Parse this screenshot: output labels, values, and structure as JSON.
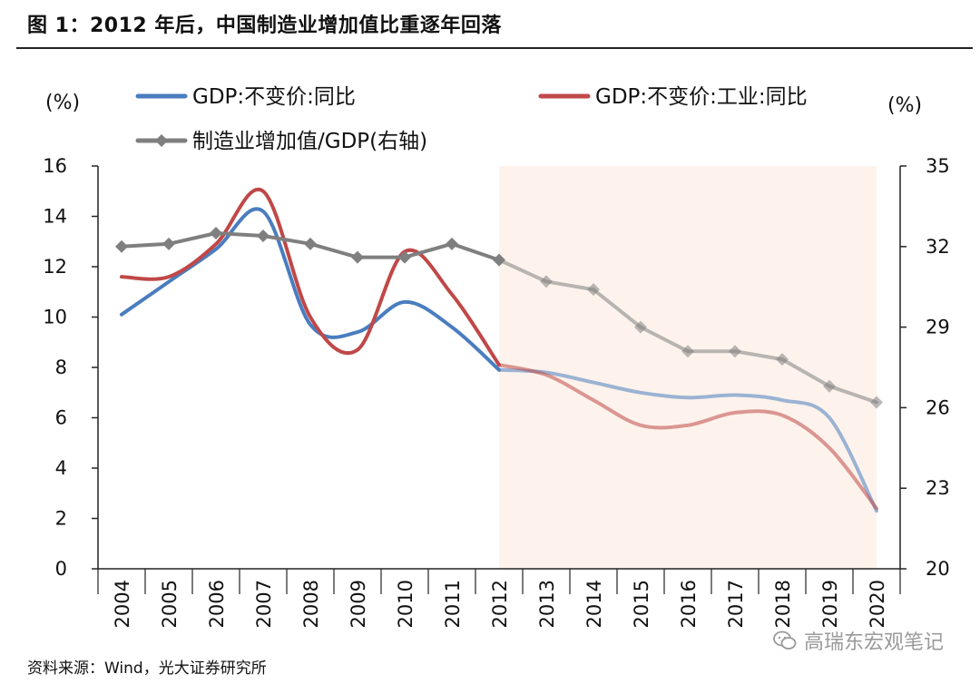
{
  "page": {
    "title": "图 1：2012 年后，中国制造业增加值比重逐年回落",
    "source": "资料来源：Wind，光大证券研究所",
    "watermark": "高瑞东宏观笔记"
  },
  "colors": {
    "gdp": "#4a7dbf",
    "industry": "#c04848",
    "manufacturing": "#7f7f7f",
    "shade": "#fdf3ec",
    "axis": "#222222"
  },
  "chart_data": {
    "type": "line",
    "title": "图 1：2012 年后，中国制造业增加值比重逐年回落",
    "left_axis_label": "(%)",
    "right_axis_label": "(%)",
    "categories": [
      "2004",
      "2005",
      "2006",
      "2007",
      "2008",
      "2009",
      "2010",
      "2011",
      "2012",
      "2013",
      "2014",
      "2015",
      "2016",
      "2017",
      "2018",
      "2019",
      "2020"
    ],
    "left_ylim": [
      0,
      16
    ],
    "left_ticks": [
      0,
      2,
      4,
      6,
      8,
      10,
      12,
      14,
      16
    ],
    "right_ylim": [
      20,
      35
    ],
    "right_ticks": [
      20,
      23,
      26,
      29,
      32,
      35
    ],
    "shaded_from": "2012",
    "shaded_to": "2020",
    "grid": false,
    "legend_position": "top",
    "series": [
      {
        "name": "GDP:不变价:同比",
        "axis": "left",
        "marker": "none",
        "values": [
          10.1,
          11.4,
          12.7,
          14.2,
          9.7,
          9.4,
          10.6,
          9.6,
          7.9,
          7.8,
          7.4,
          7.0,
          6.8,
          6.9,
          6.7,
          6.0,
          2.3
        ]
      },
      {
        "name": "GDP:不变价:工业:同比",
        "axis": "left",
        "marker": "none",
        "values": [
          11.6,
          11.6,
          12.9,
          15.0,
          10.0,
          8.7,
          12.6,
          10.9,
          8.1,
          7.7,
          6.7,
          5.7,
          5.7,
          6.2,
          6.1,
          4.8,
          2.4
        ]
      },
      {
        "name": "制造业增加值/GDP(右轴)",
        "axis": "right",
        "marker": "diamond",
        "values": [
          32.0,
          32.1,
          32.5,
          32.4,
          32.1,
          31.6,
          31.6,
          32.1,
          31.5,
          30.7,
          30.4,
          29.0,
          28.1,
          28.1,
          27.8,
          26.8,
          26.2
        ]
      }
    ]
  }
}
